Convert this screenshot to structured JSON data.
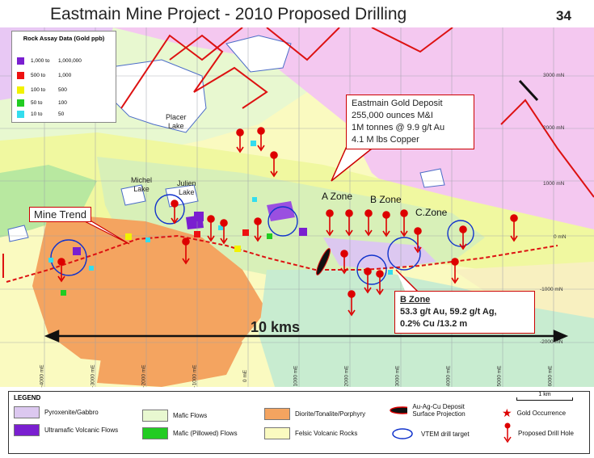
{
  "header": {
    "title": "Eastmain Mine Project - 2010 Proposed Drilling",
    "page_number": "34"
  },
  "assay_legend": {
    "title": "Rock Assay Data (Gold  ppb)",
    "rows": [
      {
        "from": "1,000 to",
        "to": "1,000,000",
        "color": "#7a1fd0"
      },
      {
        "from": "500 to",
        "to": "1,000",
        "color": "#ee1111"
      },
      {
        "from": "100 to",
        "to": "500",
        "color": "#f2f200"
      },
      {
        "from": "50 to",
        "to": "100",
        "color": "#22cc22"
      },
      {
        "from": "10 to",
        "to": "50",
        "color": "#33ddee"
      }
    ]
  },
  "callouts": {
    "deposit": [
      "Eastmain Gold Deposit",
      "255,000 ounces M&I",
      "1M tonnes @ 9.9 g/t Au",
      "4.1 M lbs Copper"
    ],
    "bzone_title": "B Zone",
    "bzone": [
      "53.3 g/t Au, 59.2 g/t Ag,",
      "0.2% Cu /13.2 m"
    ],
    "mine_trend": "Mine Trend"
  },
  "labels": {
    "placer_lake": "Placer\nLake",
    "michel_lake": "Michel\nLake",
    "julien_lake": "Julien\nLake",
    "a_zone": "A Zone",
    "b_zone": "B Zone",
    "c_zone": "C.Zone",
    "scale_bar": "10 kms"
  },
  "grid": {
    "northing": [
      "3000 mN",
      "2000 mN",
      "1000 mN",
      "0 mN",
      "-1000 mN",
      "-2000 mN"
    ],
    "easting": [
      "-4000 mE",
      "-3000 mE",
      "-2000 mE",
      "-1000 mE",
      "0 mE",
      "1000 mE",
      "2000 mE",
      "3000 mE",
      "4000 mE",
      "5000 mE",
      "6000 mE"
    ]
  },
  "legend": {
    "title": "LEGEND",
    "items": [
      {
        "label": "Pyroxenite/Gabbro",
        "color": "#dcc8f0"
      },
      {
        "label": "Ultramafic Volcanic Flows",
        "color": "#7a1fd0"
      },
      {
        "label": "Mafic Flows",
        "color": "#e8f8d0"
      },
      {
        "label": "Mafic (Pillowed) Flows",
        "color": "#22cc22"
      },
      {
        "label": "Diorite/Tonalite/Porphyry",
        "color": "#f4a460"
      },
      {
        "label": "Felsic Volcanic Rocks",
        "color": "#fafac0"
      },
      {
        "label": "Au-Ag-Cu Deposit Surface Projection",
        "color": "#111111"
      },
      {
        "label": "VTEM drill target",
        "color": "#1133cc"
      },
      {
        "label": "Gold Occurrence",
        "color": "#dd0000"
      },
      {
        "label": "Proposed Drill Hole",
        "color": "#dd0000"
      }
    ],
    "scale": "1 km"
  },
  "colors": {
    "felsic": "#fafac0",
    "mafic": "#e8f8d0",
    "ultramafic_pink": "#f4c8f0",
    "diorite": "#f4a460",
    "lake": "#ffffff",
    "drill": "#dd0000",
    "trend": "#dd0000"
  }
}
